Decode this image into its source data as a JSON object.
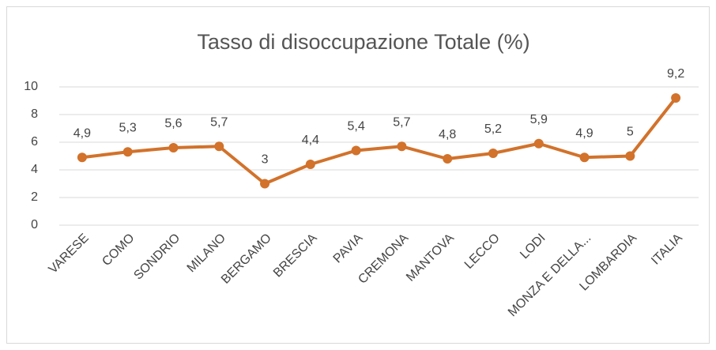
{
  "chart_data": {
    "type": "line",
    "title": "Tasso di disoccupazione Totale  (%)",
    "categories": [
      "VARESE",
      "COMO",
      "SONDRIO",
      "MILANO",
      "BERGAMO",
      "BRESCIA",
      "PAVIA",
      "CREMONA",
      "MANTOVA",
      "LECCO",
      "LODI",
      "MONZA E DELLA...",
      "LOMBARDIA",
      "ITALIA"
    ],
    "series": [
      {
        "name": "Tasso di disoccupazione Totale",
        "color": "#d2722b",
        "values": [
          4.9,
          5.3,
          5.6,
          5.7,
          3,
          4.4,
          5.4,
          5.7,
          4.8,
          5.2,
          5.9,
          4.9,
          5,
          9.2
        ],
        "value_labels": [
          "4,9",
          "5,3",
          "5,6",
          "5,7",
          "3",
          "4,4",
          "5,4",
          "5,7",
          "4,8",
          "5,2",
          "5,9",
          "4,9",
          "5",
          "9,2"
        ]
      }
    ],
    "ylim": [
      0,
      10
    ],
    "yticks": [
      0,
      2,
      4,
      6,
      8,
      10
    ],
    "grid": true
  }
}
